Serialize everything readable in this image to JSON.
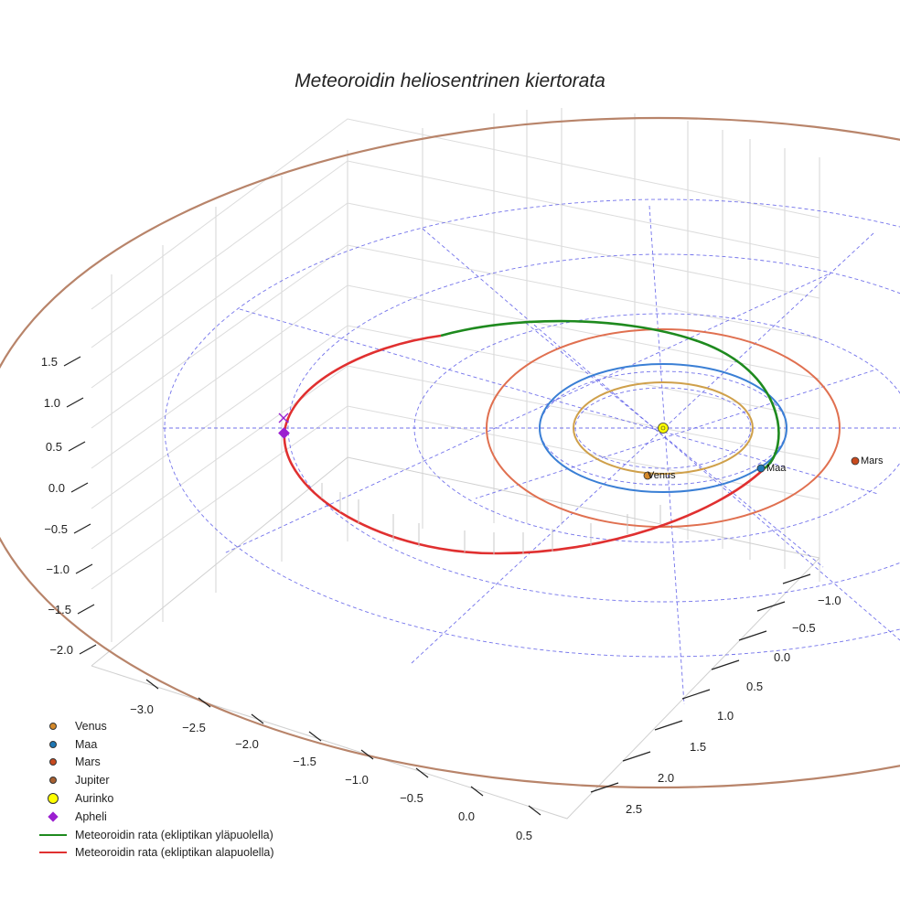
{
  "chart_data": {
    "type": "scatter3d",
    "title": "Meteoroidin heliosentrinen kiertorata",
    "x_ticks": [
      "−3.0",
      "−2.5",
      "−2.0",
      "−1.5",
      "−1.0",
      "−0.5",
      "0.0",
      "0.5"
    ],
    "y_ticks": [
      "−1.0",
      "−0.5",
      "0.0",
      "0.5",
      "1.0",
      "1.5",
      "2.0",
      "2.5"
    ],
    "z_ticks": [
      "1.5",
      "1.0",
      "0.5",
      "0.0",
      "−0.5",
      "−1.0",
      "−1.5",
      "−2.0"
    ],
    "planets": [
      {
        "name": "Venus",
        "label": "Venus",
        "orbit_radius_au": 0.72,
        "color": "#d4892a",
        "orbit_color": "#cfa04a"
      },
      {
        "name": "Maa",
        "label": "Maa",
        "orbit_radius_au": 1.0,
        "color": "#1f77b4",
        "orbit_color": "#3a7fd5"
      },
      {
        "name": "Mars",
        "label": "Mars",
        "orbit_radius_au": 1.52,
        "color": "#c84a1e",
        "orbit_color": "#e07050"
      },
      {
        "name": "Jupiter",
        "label": "",
        "orbit_radius_au": 5.2,
        "color": "#a86030",
        "orbit_color": "#b8846a"
      }
    ],
    "sun": {
      "name": "Aurinko",
      "color": "#ffff00"
    },
    "aphelion": {
      "name": "Apheli",
      "color": "#9b1fd0"
    },
    "meteoroid_orbit": {
      "above": {
        "name": "Meteoroidin rata (ekliptikan yläpuolella)",
        "color": "#1e8a1e"
      },
      "below": {
        "name": "Meteoroidin rata (ekliptikan alapuolella)",
        "color": "#e03030"
      }
    },
    "reference_grid": {
      "type": "polar",
      "style": "dashed",
      "color": "#5a5ae8"
    },
    "legend_position": "bottom-left"
  },
  "legend": [
    {
      "label": "Venus",
      "kind": "dot",
      "color": "#d4892a"
    },
    {
      "label": "Maa",
      "kind": "dot",
      "color": "#1f77b4"
    },
    {
      "label": "Mars",
      "kind": "dot",
      "color": "#c84a1e"
    },
    {
      "label": "Jupiter",
      "kind": "dot",
      "color": "#a86030"
    },
    {
      "label": "Aurinko",
      "kind": "sun",
      "color": "#ffff00"
    },
    {
      "label": "Apheli",
      "kind": "diamond",
      "color": "#9b1fd0"
    },
    {
      "label": "Meteoroidin rata (ekliptikan yläpuolella)",
      "kind": "line",
      "color": "#1e8a1e"
    },
    {
      "label": "Meteoroidin rata (ekliptikan alapuolella)",
      "kind": "line",
      "color": "#e03030"
    }
  ]
}
